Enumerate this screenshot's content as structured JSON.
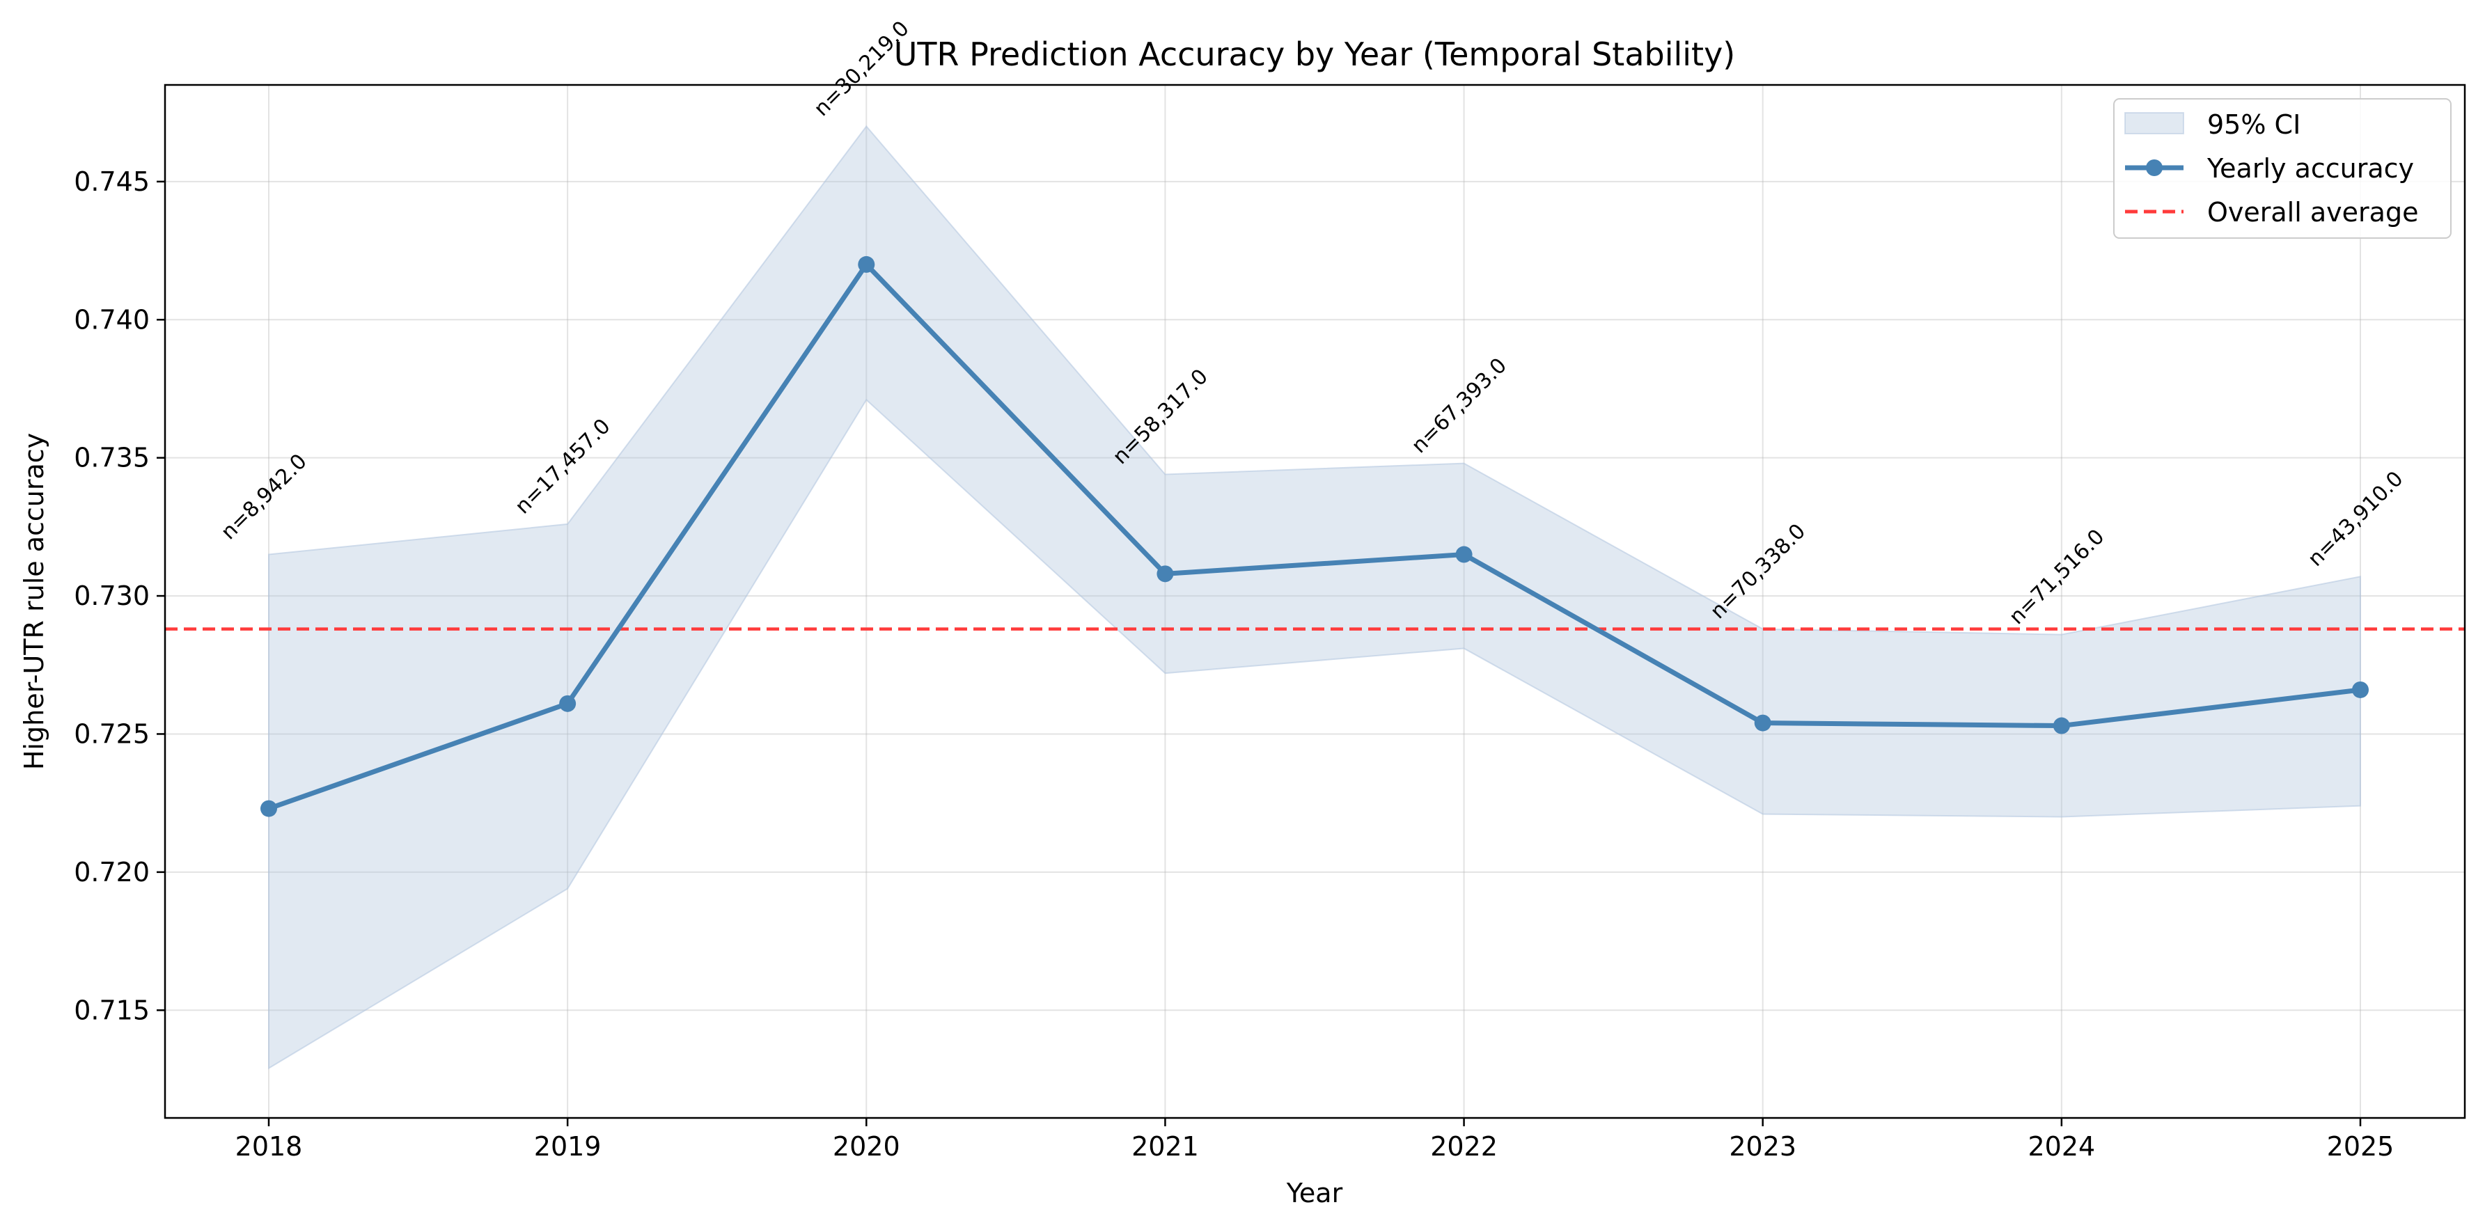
{
  "chart_data": {
    "type": "line",
    "title": "UTR Prediction Accuracy by Year (Temporal Stability)",
    "xlabel": "Year",
    "ylabel": "Higher-UTR rule accuracy",
    "x": [
      "2018",
      "2019",
      "2020",
      "2021",
      "2022",
      "2023",
      "2024",
      "2025"
    ],
    "series": [
      {
        "name": "Yearly accuracy",
        "values": [
          0.7223,
          0.7261,
          0.742,
          0.7308,
          0.7315,
          0.7254,
          0.7253,
          0.7266
        ],
        "color": "#4682b4"
      }
    ],
    "ci": {
      "name": "95% CI",
      "lower": [
        0.7129,
        0.7194,
        0.7371,
        0.7272,
        0.7281,
        0.7221,
        0.722,
        0.7224
      ],
      "upper": [
        0.7315,
        0.7326,
        0.747,
        0.7344,
        0.7348,
        0.7288,
        0.7286,
        0.7307
      ],
      "color": "#b0c4de"
    },
    "reference_line": {
      "name": "Overall average",
      "value": 0.7288,
      "color": "#ff3b3b",
      "style": "dashed"
    },
    "sample_labels": [
      "n=8,942.0",
      "n=17,457.0",
      "n=30,219.0",
      "n=58,317.0",
      "n=67,393.0",
      "n=70,338.0",
      "n=71,516.0",
      "n=43,910.0"
    ],
    "ylim": [
      0.7111,
      0.7485
    ],
    "yticks": [
      "0.715",
      "0.720",
      "0.725",
      "0.730",
      "0.735",
      "0.740",
      "0.745"
    ],
    "grid": true,
    "legend_position": "top-right"
  }
}
